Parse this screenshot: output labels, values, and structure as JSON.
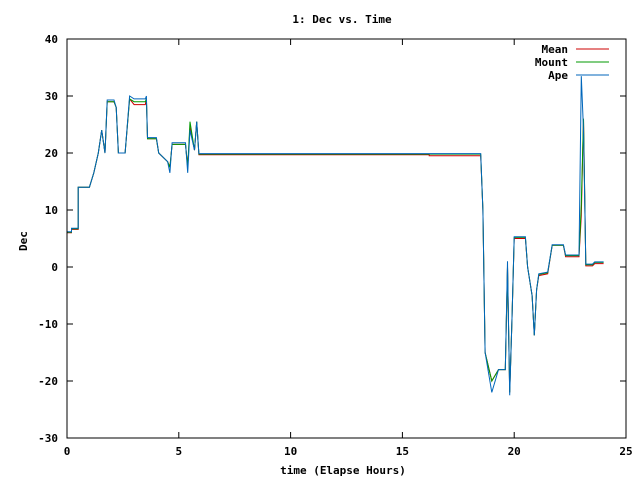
{
  "chart_data": {
    "type": "line",
    "title": "1: Dec vs. Time",
    "xlabel": "time (Elapse Hours)",
    "ylabel": "Dec",
    "xlim": [
      0,
      25
    ],
    "ylim": [
      -30,
      40
    ],
    "xticks": [
      0,
      5,
      10,
      15,
      20,
      25
    ],
    "yticks": [
      -30,
      -20,
      -10,
      0,
      10,
      20,
      30,
      40
    ],
    "grid": false,
    "legend": "top-right",
    "series": [
      {
        "name": "Mean",
        "color": "#cc0000",
        "points": [
          [
            0,
            6.0
          ],
          [
            0.2,
            6.0
          ],
          [
            0.2,
            6.6
          ],
          [
            0.5,
            6.6
          ],
          [
            0.5,
            14.0
          ],
          [
            1.0,
            14.0
          ],
          [
            1.2,
            16.5
          ],
          [
            1.4,
            20.0
          ],
          [
            1.55,
            24.0
          ],
          [
            1.7,
            20.0
          ],
          [
            1.8,
            29.0
          ],
          [
            2.1,
            29.0
          ],
          [
            2.2,
            28.0
          ],
          [
            2.3,
            20.0
          ],
          [
            2.6,
            20.0
          ],
          [
            2.8,
            29.5
          ],
          [
            3.0,
            28.5
          ],
          [
            3.5,
            28.5
          ],
          [
            3.55,
            29.5
          ],
          [
            3.6,
            22.5
          ],
          [
            4.0,
            22.5
          ],
          [
            4.1,
            20.0
          ],
          [
            4.5,
            18.5
          ],
          [
            4.6,
            17.5
          ],
          [
            4.7,
            21.5
          ],
          [
            5.3,
            21.5
          ],
          [
            5.4,
            17.5
          ],
          [
            5.5,
            24.5
          ],
          [
            5.7,
            20.5
          ],
          [
            5.8,
            25.5
          ],
          [
            5.9,
            19.7
          ],
          [
            16.2,
            19.7
          ],
          [
            16.2,
            19.5
          ],
          [
            18.5,
            19.5
          ],
          [
            18.6,
            10.0
          ],
          [
            18.7,
            -15.0
          ],
          [
            19.0,
            -20.0
          ],
          [
            19.3,
            -18.0
          ],
          [
            19.6,
            -18.0
          ],
          [
            19.7,
            0.0
          ],
          [
            19.8,
            -22.0
          ],
          [
            19.9,
            -9.0
          ],
          [
            20.0,
            5.0
          ],
          [
            20.5,
            5.0
          ],
          [
            20.6,
            0.0
          ],
          [
            20.8,
            -5.0
          ],
          [
            20.9,
            -12.0
          ],
          [
            21.0,
            -4.0
          ],
          [
            21.1,
            -1.5
          ],
          [
            21.5,
            -1.2
          ],
          [
            21.7,
            3.8
          ],
          [
            22.2,
            3.8
          ],
          [
            22.3,
            1.8
          ],
          [
            22.9,
            1.8
          ],
          [
            23.0,
            9.0
          ],
          [
            23.1,
            26.0
          ],
          [
            23.2,
            0.2
          ],
          [
            23.5,
            0.2
          ],
          [
            23.6,
            0.6
          ],
          [
            24.0,
            0.6
          ]
        ]
      },
      {
        "name": "Mount",
        "color": "#009900",
        "points": [
          [
            0,
            6.1
          ],
          [
            0.2,
            6.1
          ],
          [
            0.2,
            6.7
          ],
          [
            0.5,
            6.7
          ],
          [
            0.5,
            14.0
          ],
          [
            1.0,
            14.0
          ],
          [
            1.2,
            16.5
          ],
          [
            1.4,
            20.0
          ],
          [
            1.55,
            24.0
          ],
          [
            1.7,
            20.0
          ],
          [
            1.8,
            29.0
          ],
          [
            2.1,
            29.0
          ],
          [
            2.2,
            28.0
          ],
          [
            2.3,
            20.0
          ],
          [
            2.6,
            20.0
          ],
          [
            2.8,
            29.5
          ],
          [
            3.0,
            29.0
          ],
          [
            3.5,
            29.0
          ],
          [
            3.55,
            29.5
          ],
          [
            3.6,
            22.5
          ],
          [
            4.0,
            22.5
          ],
          [
            4.1,
            20.0
          ],
          [
            4.5,
            18.5
          ],
          [
            4.6,
            17.5
          ],
          [
            4.7,
            21.5
          ],
          [
            5.3,
            21.5
          ],
          [
            5.4,
            17.5
          ],
          [
            5.5,
            25.5
          ],
          [
            5.7,
            20.5
          ],
          [
            5.8,
            25.5
          ],
          [
            5.9,
            19.8
          ],
          [
            16.2,
            19.8
          ],
          [
            18.5,
            19.8
          ],
          [
            18.6,
            10.0
          ],
          [
            18.7,
            -15.0
          ],
          [
            19.0,
            -20.0
          ],
          [
            19.3,
            -18.0
          ],
          [
            19.6,
            -18.0
          ],
          [
            19.7,
            0.0
          ],
          [
            19.8,
            -22.0
          ],
          [
            19.9,
            -9.0
          ],
          [
            20.0,
            5.2
          ],
          [
            20.5,
            5.2
          ],
          [
            20.6,
            0.0
          ],
          [
            20.8,
            -5.0
          ],
          [
            20.9,
            -12.0
          ],
          [
            21.0,
            -4.0
          ],
          [
            21.1,
            -1.3
          ],
          [
            21.5,
            -1.0
          ],
          [
            21.7,
            3.8
          ],
          [
            22.2,
            3.8
          ],
          [
            22.3,
            2.0
          ],
          [
            22.9,
            2.0
          ],
          [
            23.0,
            11.0
          ],
          [
            23.1,
            26.0
          ],
          [
            23.2,
            0.4
          ],
          [
            23.5,
            0.4
          ],
          [
            23.6,
            0.8
          ],
          [
            24.0,
            0.8
          ]
        ]
      },
      {
        "name": "Ape",
        "color": "#0066bb",
        "points": [
          [
            0,
            6.2
          ],
          [
            0.2,
            6.2
          ],
          [
            0.2,
            6.8
          ],
          [
            0.5,
            6.8
          ],
          [
            0.5,
            14.0
          ],
          [
            1.0,
            14.0
          ],
          [
            1.2,
            16.5
          ],
          [
            1.4,
            20.0
          ],
          [
            1.55,
            24.0
          ],
          [
            1.7,
            20.0
          ],
          [
            1.8,
            29.3
          ],
          [
            2.1,
            29.3
          ],
          [
            2.2,
            28.0
          ],
          [
            2.3,
            20.0
          ],
          [
            2.6,
            20.0
          ],
          [
            2.8,
            30.0
          ],
          [
            3.0,
            29.5
          ],
          [
            3.5,
            29.5
          ],
          [
            3.55,
            30.0
          ],
          [
            3.6,
            22.7
          ],
          [
            4.0,
            22.7
          ],
          [
            4.1,
            20.0
          ],
          [
            4.5,
            18.5
          ],
          [
            4.6,
            16.5
          ],
          [
            4.7,
            21.8
          ],
          [
            5.3,
            21.8
          ],
          [
            5.4,
            16.5
          ],
          [
            5.5,
            24.0
          ],
          [
            5.7,
            20.5
          ],
          [
            5.8,
            25.5
          ],
          [
            5.9,
            19.9
          ],
          [
            16.2,
            19.9
          ],
          [
            18.5,
            19.9
          ],
          [
            18.6,
            10.0
          ],
          [
            18.7,
            -15.0
          ],
          [
            19.0,
            -22.0
          ],
          [
            19.3,
            -18.0
          ],
          [
            19.6,
            -18.0
          ],
          [
            19.7,
            1.0
          ],
          [
            19.8,
            -22.5
          ],
          [
            19.9,
            -9.0
          ],
          [
            20.0,
            5.3
          ],
          [
            20.5,
            5.3
          ],
          [
            20.6,
            0.0
          ],
          [
            20.8,
            -5.0
          ],
          [
            20.9,
            -12.0
          ],
          [
            21.0,
            -4.0
          ],
          [
            21.1,
            -1.2
          ],
          [
            21.5,
            -0.9
          ],
          [
            21.7,
            3.9
          ],
          [
            22.2,
            3.9
          ],
          [
            22.3,
            2.1
          ],
          [
            22.9,
            2.1
          ],
          [
            23.0,
            33.5
          ],
          [
            23.1,
            24.0
          ],
          [
            23.2,
            0.5
          ],
          [
            23.5,
            0.5
          ],
          [
            23.6,
            0.9
          ],
          [
            24.0,
            0.9
          ]
        ]
      }
    ]
  }
}
